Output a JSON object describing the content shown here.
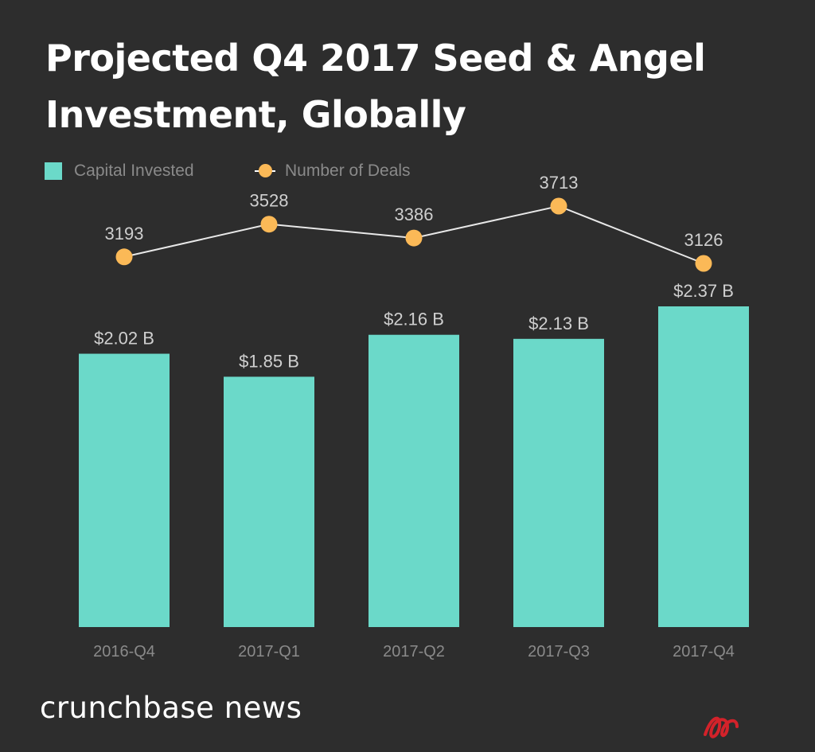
{
  "title": "Projected Q4 2017 Seed & Angel Investment, Globally",
  "legend": {
    "bar_label": "Capital Invested",
    "line_label": "Number of Deals"
  },
  "colors": {
    "background": "#2d2d2d",
    "bar": "#6bd9c9",
    "dot": "#fbb957",
    "line": "#e8e8e8",
    "label": "#cfcfcf",
    "axis_label": "#8a8a8a"
  },
  "chart_data": {
    "type": "bar",
    "categories": [
      "2016-Q4",
      "2017-Q1",
      "2017-Q2",
      "2017-Q3",
      "2017-Q4"
    ],
    "series": [
      {
        "name": "Capital Invested",
        "type": "bar",
        "values": [
          2.02,
          1.85,
          2.16,
          2.13,
          2.37
        ],
        "labels": [
          "$2.02 B",
          "$1.85 B",
          "$2.16 B",
          "$2.13 B",
          "$2.37 B"
        ]
      },
      {
        "name": "Number of Deals",
        "type": "line",
        "values": [
          3193,
          3528,
          3386,
          3713,
          3126
        ],
        "labels": [
          "3193",
          "3528",
          "3386",
          "3713",
          "3126"
        ]
      }
    ],
    "grid": false,
    "legend_position": "top-left"
  },
  "footer": {
    "brand": "crunchbase news"
  }
}
